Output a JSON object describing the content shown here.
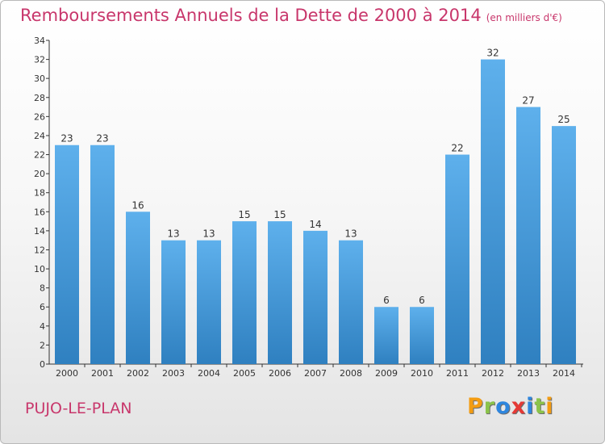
{
  "header": {
    "title": "Remboursements Annuels de la Dette de 2000 à 2014",
    "subtitle": "(en milliers d'€)"
  },
  "footer": {
    "city": "PUJO-LE-PLAN",
    "logo": {
      "text": "Proxiti",
      "colors": [
        "#f39c12",
        "#8bc34a",
        "#2e86de",
        "#e53935",
        "#2e86de",
        "#8bc34a",
        "#f39c12"
      ]
    }
  },
  "colors": {
    "title": "#c8366b",
    "bar_light": "#5eb0ec",
    "bar_dark": "#2f80c0",
    "axis": "#333333"
  },
  "chart_data": {
    "type": "bar",
    "categories": [
      "2000",
      "2001",
      "2002",
      "2003",
      "2004",
      "2005",
      "2006",
      "2007",
      "2008",
      "2009",
      "2010",
      "2011",
      "2012",
      "2013",
      "2014"
    ],
    "values": [
      23,
      23,
      16,
      13,
      13,
      15,
      15,
      14,
      13,
      6,
      6,
      22,
      32,
      27,
      25
    ],
    "title": "Remboursements Annuels de la Dette de 2000 à 2014",
    "subtitle": "(en milliers d'€)",
    "xlabel": "",
    "ylabel": "",
    "ylim": [
      0,
      34
    ],
    "yticks": [
      0,
      2,
      4,
      6,
      8,
      10,
      12,
      14,
      16,
      18,
      20,
      22,
      24,
      26,
      28,
      30,
      32,
      34
    ],
    "data_labels": true,
    "grid": false,
    "legend": "none"
  }
}
